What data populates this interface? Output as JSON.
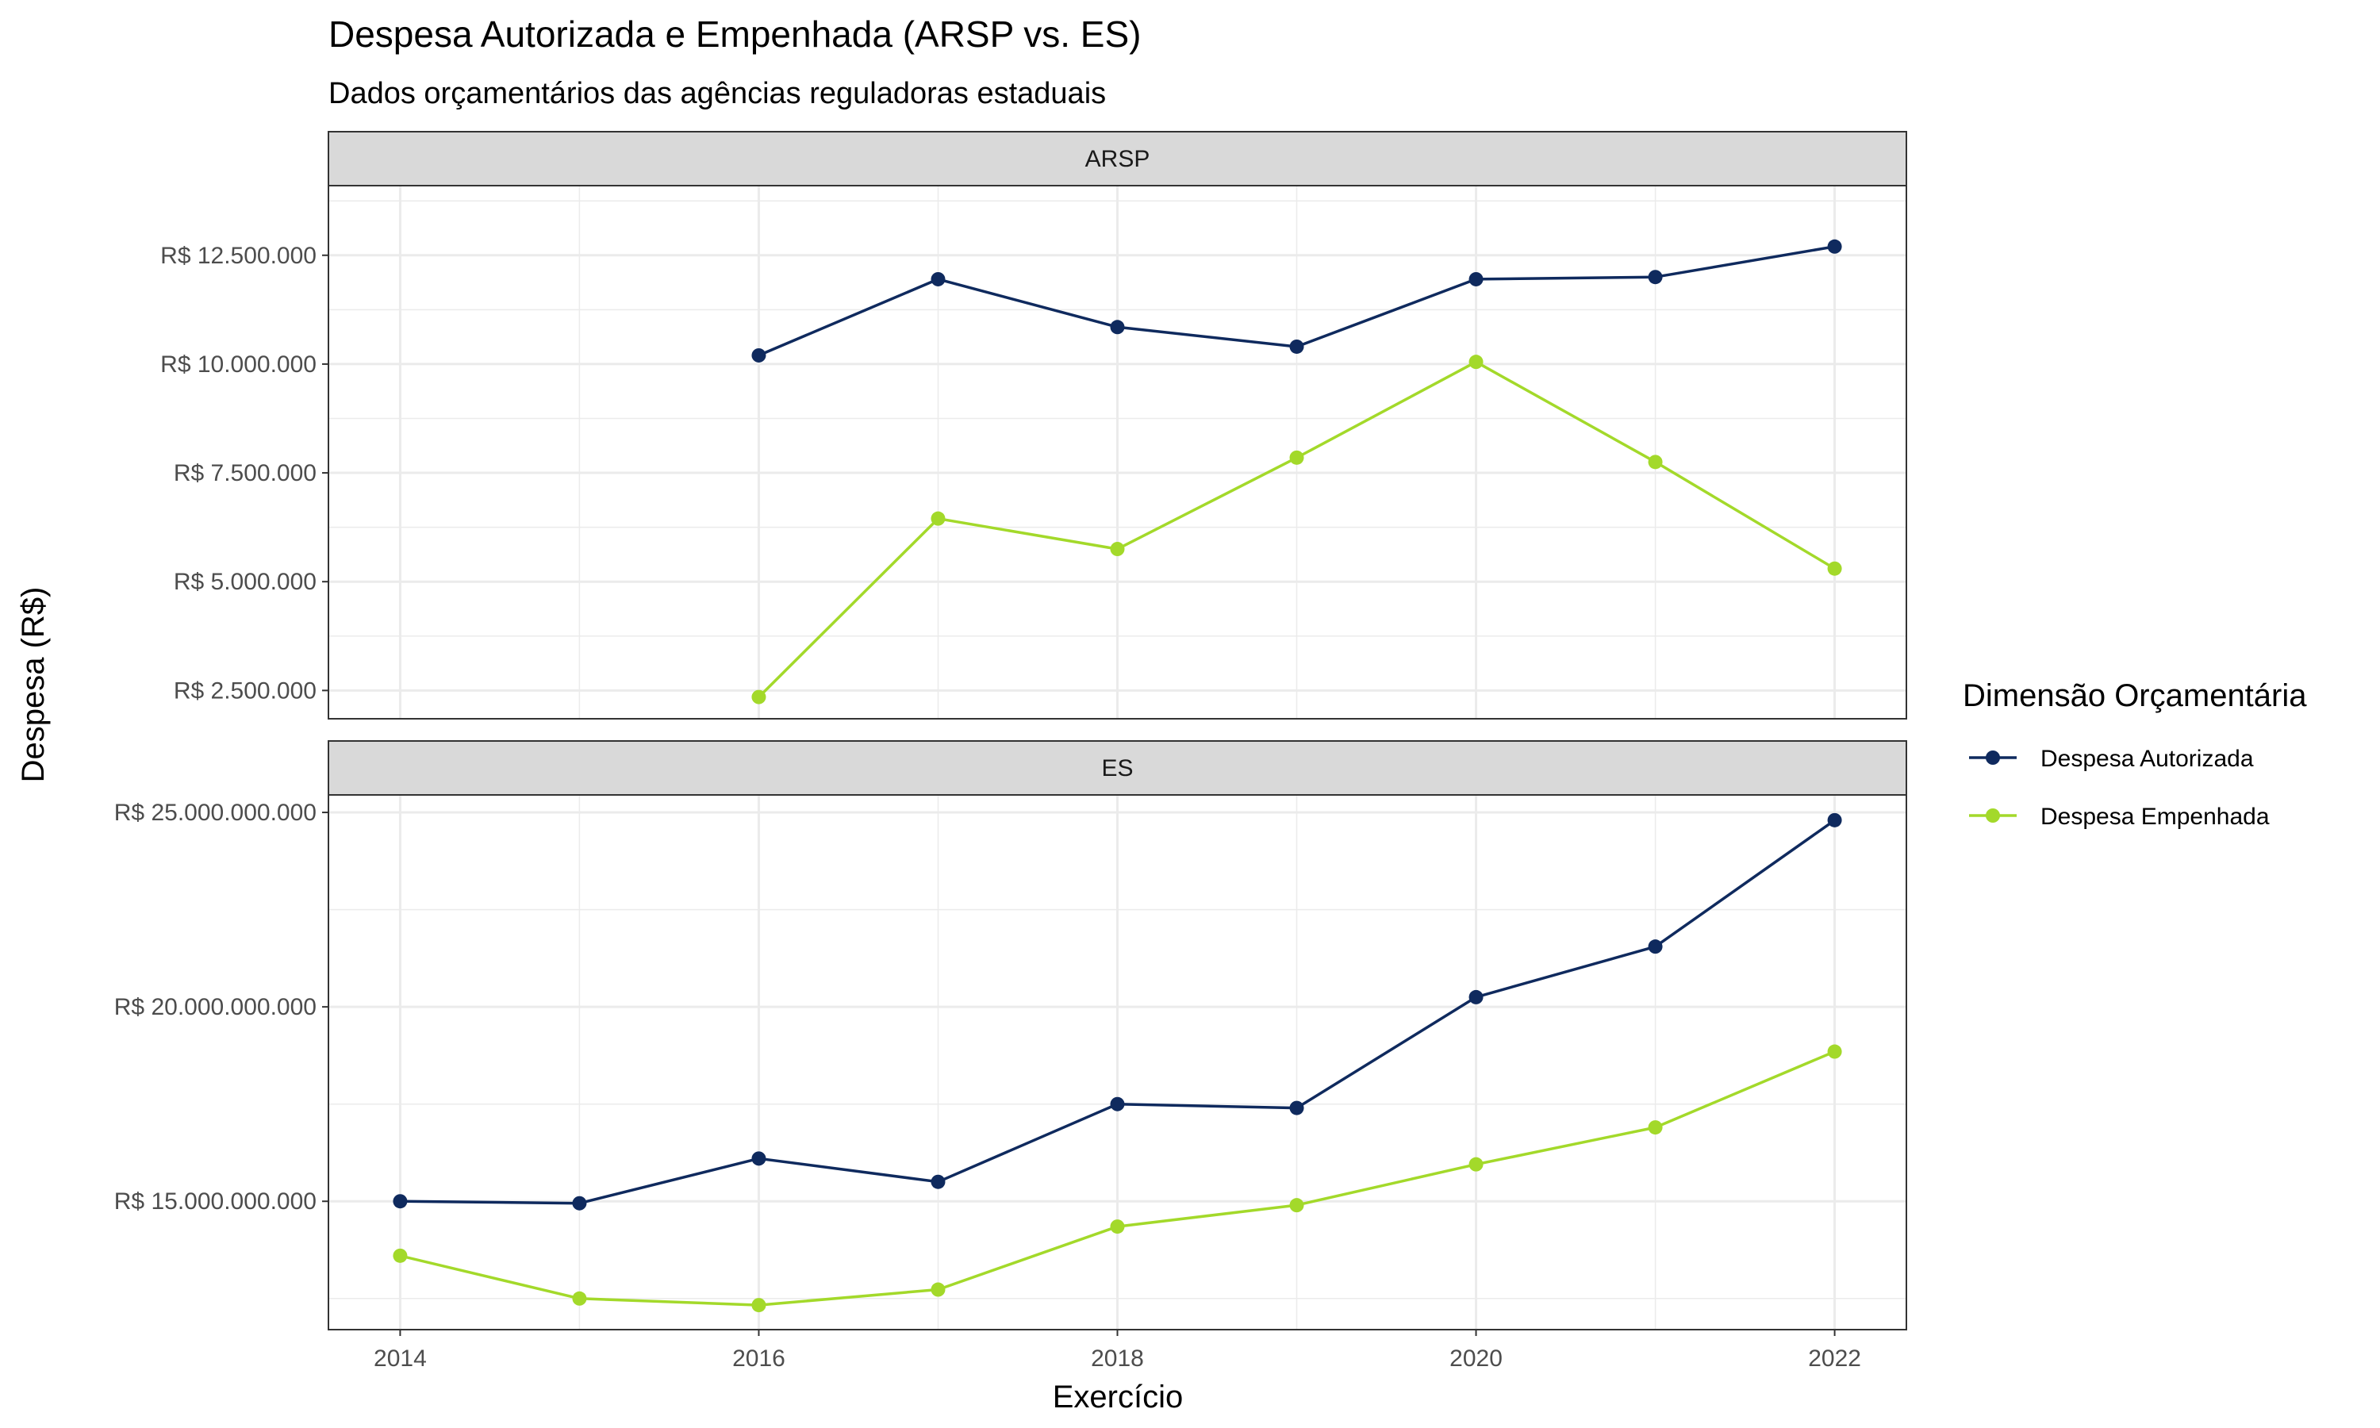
{
  "chart_data": {
    "type": "line",
    "title": "Despesa Autorizada e Empenhada (ARSP vs. ES)",
    "subtitle": "Dados orçamentários das agências reguladoras estaduais",
    "xlabel": "Exercício",
    "ylabel": "Despesa (R$)",
    "x_ticks": [
      "2014",
      "2016",
      "2018",
      "2020",
      "2022"
    ],
    "xlim": [
      2013.6,
      2022.4
    ],
    "grid": true,
    "legend": {
      "title": "Dimensão Orçamentária",
      "position": "right",
      "entries": [
        {
          "label": "Despesa Autorizada",
          "color": "#0f2a5e"
        },
        {
          "label": "Despesa Empenhada",
          "color": "#a3d92a"
        }
      ]
    },
    "panels": [
      {
        "strip": "ARSP",
        "ylim": [
          1850000,
          14100000
        ],
        "y_ticks": [
          2500000,
          5000000,
          7500000,
          10000000,
          12500000
        ],
        "y_tick_labels": [
          "R$ 2.500.000",
          "R$ 5.000.000",
          "R$ 7.500.000",
          "R$ 10.000.000",
          "R$ 12.500.000"
        ],
        "series": [
          {
            "name": "Despesa Autorizada",
            "color": "#0f2a5e",
            "x": [
              2016,
              2017,
              2018,
              2019,
              2020,
              2021,
              2022
            ],
            "y": [
              10200000,
              11950000,
              10850000,
              10400000,
              11950000,
              12000000,
              12700000
            ]
          },
          {
            "name": "Despesa Empenhada",
            "color": "#a3d92a",
            "x": [
              2016,
              2017,
              2018,
              2019,
              2020,
              2021,
              2022
            ],
            "y": [
              2350000,
              6450000,
              5750000,
              7850000,
              10050000,
              7750000,
              5300000
            ]
          }
        ]
      },
      {
        "strip": "ES",
        "ylim": [
          11700000000,
          25450000000
        ],
        "y_ticks": [
          15000000000,
          20000000000,
          25000000000
        ],
        "y_tick_labels": [
          "R$ 15.000.000.000",
          "R$ 20.000.000.000",
          "R$ 25.000.000.000"
        ],
        "series": [
          {
            "name": "Despesa Autorizada",
            "color": "#0f2a5e",
            "x": [
              2014,
              2015,
              2016,
              2017,
              2018,
              2019,
              2020,
              2021,
              2022
            ],
            "y": [
              15000000000,
              14950000000,
              16100000000,
              15500000000,
              17500000000,
              17400000000,
              20250000000,
              21550000000,
              24800000000
            ]
          },
          {
            "name": "Despesa Empenhada",
            "color": "#a3d92a",
            "x": [
              2014,
              2015,
              2016,
              2017,
              2018,
              2019,
              2020,
              2021,
              2022
            ],
            "y": [
              13600000000,
              12500000000,
              12330000000,
              12730000000,
              14350000000,
              14900000000,
              15950000000,
              16900000000,
              18850000000
            ]
          }
        ]
      }
    ]
  }
}
